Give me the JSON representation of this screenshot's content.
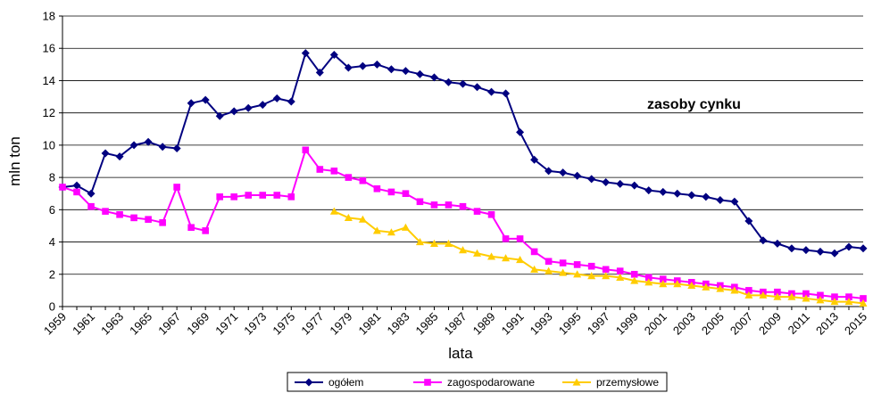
{
  "chart_data": {
    "type": "line",
    "title": "",
    "annotation": "zasoby cynku",
    "xlabel": "lata",
    "ylabel": "mln ton",
    "ylim": [
      0,
      18
    ],
    "yticks": [
      0,
      2,
      4,
      6,
      8,
      10,
      12,
      14,
      16,
      18
    ],
    "xlim": [
      1959,
      2015
    ],
    "xticks": [
      "1959",
      "1961",
      "1963",
      "1965",
      "1967",
      "1969",
      "1971",
      "1973",
      "1975",
      "1977",
      "1979",
      "1981",
      "1983",
      "1985",
      "1987",
      "1989",
      "1991",
      "1993",
      "1995",
      "1997",
      "1999",
      "2001",
      "2003",
      "2005",
      "2007",
      "2009",
      "2011",
      "2013",
      "2015"
    ],
    "grid": "horizontal",
    "legend_position": "bottom",
    "series": [
      {
        "name": "ogółem",
        "color": "#000080",
        "marker": "diamond",
        "x": [
          1959,
          1960,
          1961,
          1962,
          1963,
          1964,
          1965,
          1966,
          1967,
          1968,
          1969,
          1970,
          1971,
          1972,
          1973,
          1974,
          1975,
          1976,
          1977,
          1978,
          1979,
          1980,
          1981,
          1982,
          1983,
          1984,
          1985,
          1986,
          1987,
          1988,
          1989,
          1990,
          1991,
          1992,
          1993,
          1994,
          1995,
          1996,
          1997,
          1998,
          1999,
          2000,
          2001,
          2002,
          2003,
          2004,
          2005,
          2006,
          2007,
          2008,
          2009,
          2010,
          2011,
          2012,
          2013,
          2014,
          2015
        ],
        "values": [
          7.4,
          7.5,
          7.0,
          9.5,
          9.3,
          10.0,
          10.2,
          9.9,
          9.8,
          12.6,
          12.8,
          11.8,
          12.1,
          12.3,
          12.5,
          12.9,
          12.7,
          15.7,
          14.5,
          15.6,
          14.8,
          14.9,
          15.0,
          14.7,
          14.6,
          14.4,
          14.2,
          13.9,
          13.8,
          13.6,
          13.3,
          13.2,
          10.8,
          9.1,
          8.4,
          8.3,
          8.1,
          7.9,
          7.7,
          7.6,
          7.5,
          7.2,
          7.1,
          7.0,
          6.9,
          6.8,
          6.6,
          6.5,
          5.3,
          4.1,
          3.9,
          3.6,
          3.5,
          3.4,
          3.3,
          3.7,
          3.6
        ]
      },
      {
        "name": "zagospodarowane",
        "color": "#FF00FF",
        "marker": "square",
        "x": [
          1959,
          1960,
          1961,
          1962,
          1963,
          1964,
          1965,
          1966,
          1967,
          1968,
          1969,
          1970,
          1971,
          1972,
          1973,
          1974,
          1975,
          1976,
          1977,
          1978,
          1979,
          1980,
          1981,
          1982,
          1983,
          1984,
          1985,
          1986,
          1987,
          1988,
          1989,
          1990,
          1991,
          1992,
          1993,
          1994,
          1995,
          1996,
          1997,
          1998,
          1999,
          2000,
          2001,
          2002,
          2003,
          2004,
          2005,
          2006,
          2007,
          2008,
          2009,
          2010,
          2011,
          2012,
          2013,
          2014,
          2015
        ],
        "values": [
          7.4,
          7.1,
          6.2,
          5.9,
          5.7,
          5.5,
          5.4,
          5.2,
          7.4,
          4.9,
          4.7,
          6.8,
          6.8,
          6.9,
          6.9,
          6.9,
          6.8,
          9.7,
          8.5,
          8.4,
          8.0,
          7.8,
          7.3,
          7.1,
          7.0,
          6.5,
          6.3,
          6.3,
          6.2,
          5.9,
          5.7,
          4.2,
          4.2,
          3.4,
          2.8,
          2.7,
          2.6,
          2.5,
          2.3,
          2.2,
          2.0,
          1.8,
          1.7,
          1.6,
          1.5,
          1.4,
          1.3,
          1.2,
          1.0,
          0.9,
          0.9,
          0.8,
          0.8,
          0.7,
          0.6,
          0.6,
          0.5
        ]
      },
      {
        "name": "przemysłowe",
        "color": "#FFCC00",
        "marker": "triangle",
        "x": [
          1978,
          1979,
          1980,
          1981,
          1982,
          1983,
          1984,
          1985,
          1986,
          1987,
          1988,
          1989,
          1990,
          1991,
          1992,
          1993,
          1994,
          1995,
          1996,
          1997,
          1998,
          1999,
          2000,
          2001,
          2002,
          2003,
          2004,
          2005,
          2006,
          2007,
          2008,
          2009,
          2010,
          2011,
          2012,
          2013,
          2014,
          2015
        ],
        "values": [
          5.9,
          5.5,
          5.4,
          4.7,
          4.6,
          4.9,
          4.0,
          3.9,
          3.9,
          3.5,
          3.3,
          3.1,
          3.0,
          2.9,
          2.3,
          2.2,
          2.1,
          2.0,
          1.9,
          1.9,
          1.8,
          1.6,
          1.5,
          1.4,
          1.4,
          1.3,
          1.2,
          1.1,
          1.0,
          0.7,
          0.7,
          0.6,
          0.6,
          0.5,
          0.4,
          0.3,
          0.3,
          0.2
        ]
      }
    ]
  }
}
